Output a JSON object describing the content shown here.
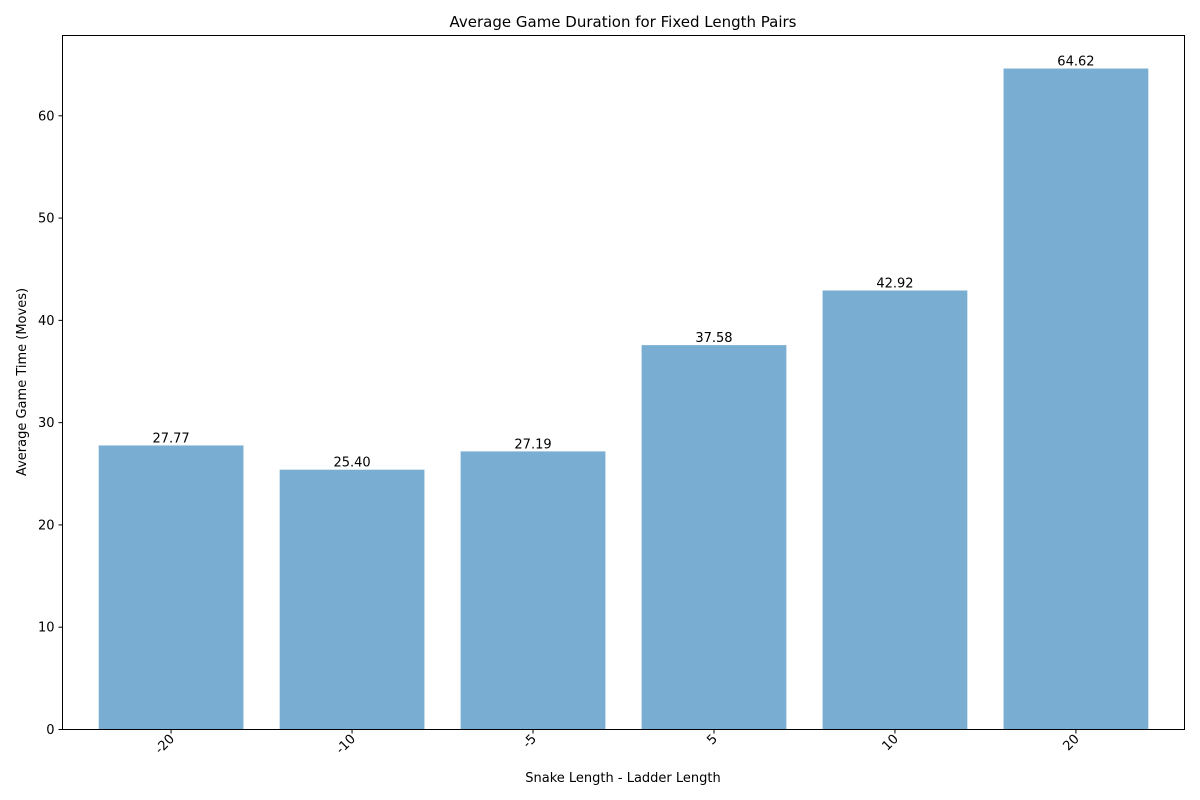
{
  "chart_data": {
    "type": "bar",
    "title": "Average Game Duration for Fixed Length Pairs",
    "xlabel": "Snake Length - Ladder Length",
    "ylabel": "Average Game Time (Moves)",
    "categories": [
      "-20",
      "-10",
      "-5",
      "5",
      "10",
      "20"
    ],
    "values": [
      27.77,
      25.4,
      27.19,
      37.58,
      42.92,
      64.62
    ],
    "value_labels": [
      "27.77",
      "25.40",
      "27.19",
      "37.58",
      "42.92",
      "64.62"
    ],
    "ylim": [
      0,
      67.85
    ],
    "yticks": [
      0,
      10,
      20,
      30,
      40,
      50,
      60
    ],
    "ytick_labels": [
      "0",
      "10",
      "20",
      "30",
      "40",
      "50",
      "60"
    ],
    "xtick_rotation_deg": 45,
    "grid": false,
    "legend": "none",
    "bar_color": "#1f77b4",
    "bar_opacity": 0.6
  }
}
